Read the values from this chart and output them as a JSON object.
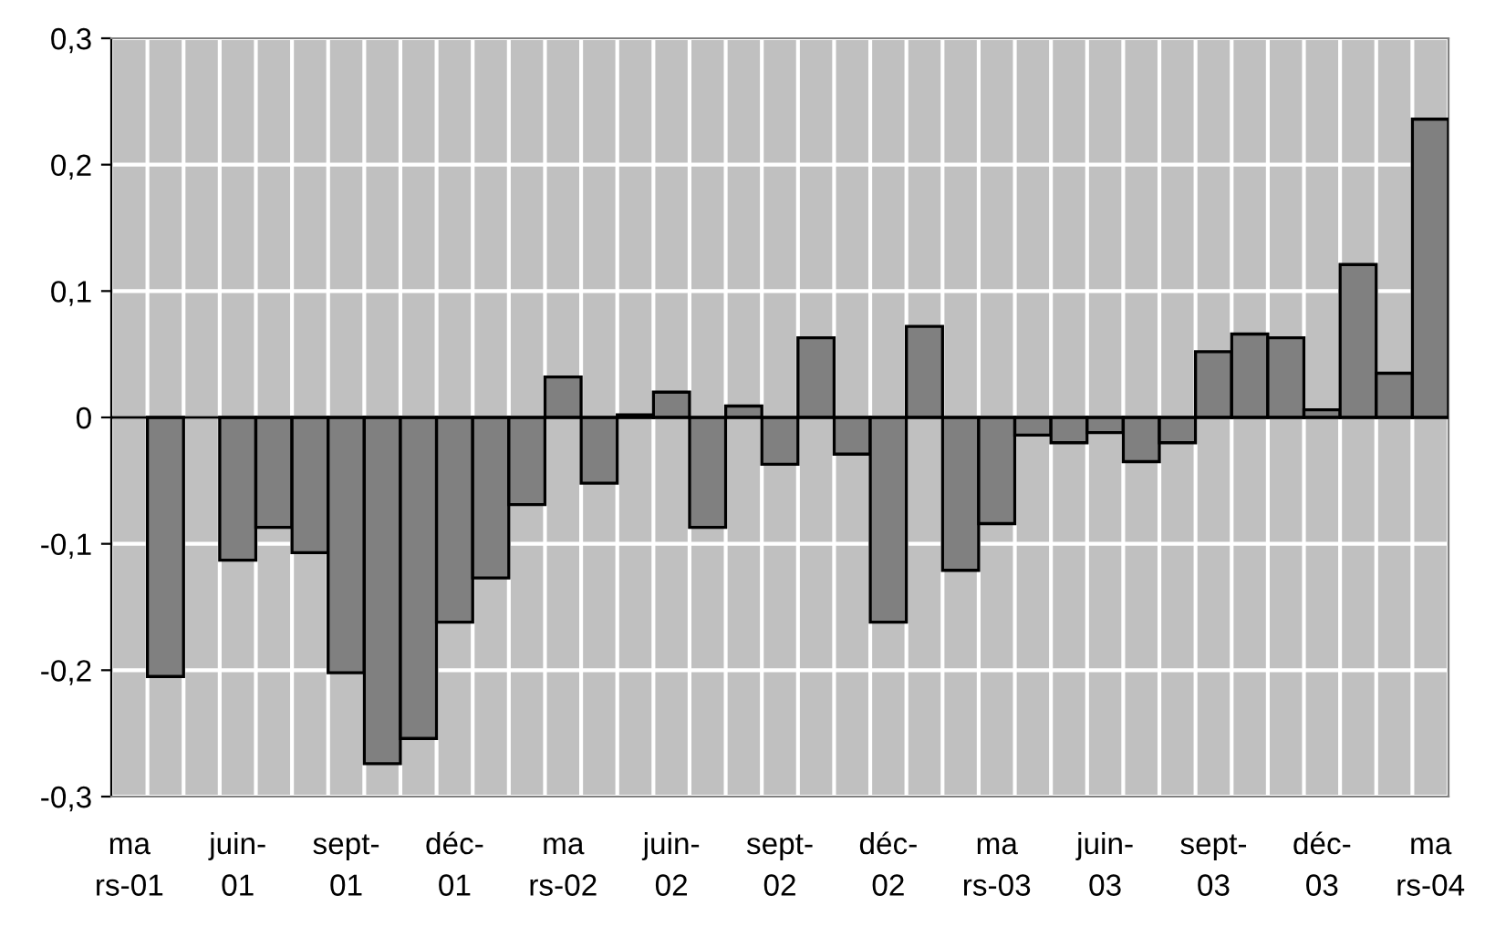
{
  "chart_data": {
    "type": "bar",
    "categories": [
      "ma\nrs-01",
      null,
      null,
      "juin-\n01",
      null,
      null,
      "sept-\n01",
      null,
      null,
      "déc-\n01",
      null,
      null,
      "ma\nrs-02",
      null,
      null,
      "juin-\n02",
      null,
      null,
      "sept-\n02",
      null,
      null,
      "déc-\n02",
      null,
      null,
      "ma\nrs-03",
      null,
      null,
      "juin-\n03",
      null,
      null,
      "sept-\n03",
      null,
      null,
      "déc-\n03",
      null,
      null,
      "ma\nrs-04"
    ],
    "values": [
      null,
      -0.205,
      null,
      -0.113,
      -0.087,
      -0.107,
      -0.202,
      -0.274,
      -0.254,
      -0.162,
      -0.127,
      -0.069,
      0.032,
      -0.052,
      0.002,
      0.02,
      -0.087,
      0.009,
      -0.037,
      0.063,
      -0.029,
      -0.162,
      0.072,
      -0.121,
      -0.084,
      -0.014,
      -0.02,
      -0.012,
      -0.035,
      -0.02,
      0.052,
      0.066,
      0.063,
      0.006,
      0.121,
      0.035,
      0.236
    ],
    "color": "#808080",
    "ylim": [
      -0.3,
      0.3
    ],
    "yticks": [
      {
        "value": -0.3,
        "label": "-0,3"
      },
      {
        "value": -0.2,
        "label": "-0,2"
      },
      {
        "value": -0.1,
        "label": "-0,1"
      },
      0,
      {
        "value": 0.1,
        "label": "0,1"
      },
      {
        "value": 0.2,
        "label": "0,2"
      },
      {
        "value": 0.3,
        "label": "0,3"
      }
    ],
    "grid": true
  }
}
